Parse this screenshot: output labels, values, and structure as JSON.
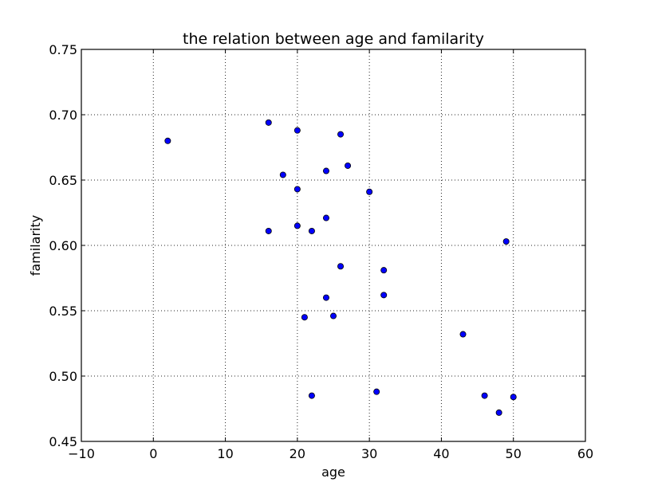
{
  "chart_data": {
    "type": "scatter",
    "title": "the relation between age and familarity",
    "xlabel": "age",
    "ylabel": "familarity",
    "xlim": [
      -10,
      60
    ],
    "ylim": [
      0.45,
      0.75
    ],
    "xticks": [
      -10,
      0,
      10,
      20,
      30,
      40,
      50,
      60
    ],
    "yticks": [
      0.45,
      0.5,
      0.55,
      0.6,
      0.65,
      0.7,
      0.75
    ],
    "xtick_labels": [
      "−10",
      "0",
      "10",
      "20",
      "30",
      "40",
      "50",
      "60"
    ],
    "ytick_labels": [
      "0.45",
      "0.50",
      "0.55",
      "0.60",
      "0.65",
      "0.70",
      "0.75"
    ],
    "grid": true,
    "marker_color": "#0000ff",
    "points": [
      {
        "x": 2,
        "y": 0.68
      },
      {
        "x": 16,
        "y": 0.694
      },
      {
        "x": 16,
        "y": 0.611
      },
      {
        "x": 18,
        "y": 0.654
      },
      {
        "x": 20,
        "y": 0.688
      },
      {
        "x": 20,
        "y": 0.643
      },
      {
        "x": 20,
        "y": 0.615
      },
      {
        "x": 21,
        "y": 0.545
      },
      {
        "x": 22,
        "y": 0.611
      },
      {
        "x": 22,
        "y": 0.485
      },
      {
        "x": 24,
        "y": 0.657
      },
      {
        "x": 24,
        "y": 0.621
      },
      {
        "x": 24,
        "y": 0.56
      },
      {
        "x": 25,
        "y": 0.546
      },
      {
        "x": 26,
        "y": 0.685
      },
      {
        "x": 26,
        "y": 0.584
      },
      {
        "x": 27,
        "y": 0.661
      },
      {
        "x": 30,
        "y": 0.641
      },
      {
        "x": 31,
        "y": 0.488
      },
      {
        "x": 32,
        "y": 0.581
      },
      {
        "x": 32,
        "y": 0.562
      },
      {
        "x": 43,
        "y": 0.532
      },
      {
        "x": 46,
        "y": 0.485
      },
      {
        "x": 48,
        "y": 0.472
      },
      {
        "x": 49,
        "y": 0.603
      },
      {
        "x": 50,
        "y": 0.484
      }
    ]
  }
}
